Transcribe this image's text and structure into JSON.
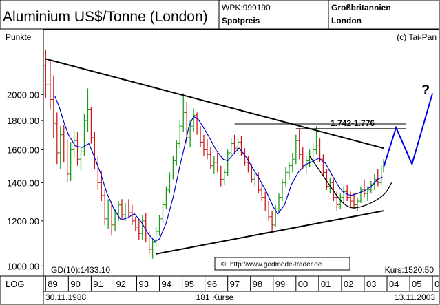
{
  "header": {
    "title": "Aluminium US$/Tonne (London)",
    "wpk": "WPK:999190",
    "price_type": "Spotpreis",
    "country": "Großbritannien",
    "city": "London"
  },
  "copyright": "(c) Tai-Pan",
  "footer": {
    "scale_mode": "LOG",
    "start_date": "30.11.1988",
    "count": "181 Kurse",
    "end_date": "13.11.2003"
  },
  "chart_data": {
    "type": "ohlc",
    "ylabel": "Punkte",
    "y_scale": "log",
    "ylim": [
      960,
      2600
    ],
    "y_ticks": [
      "2000.00",
      "1800.00",
      "1600.00",
      "1400.00",
      "1200.00",
      "1000.00"
    ],
    "x_range": [
      1988.9,
      2006.3
    ],
    "x_ticks": [
      "89",
      "90",
      "91",
      "92",
      "93",
      "94",
      "95",
      "96",
      "97",
      "98",
      "99",
      "00",
      "01",
      "02",
      "03",
      "04",
      "05",
      "06"
    ],
    "gd_label": "GD(10):1433.10",
    "kurs_label": "Kurs:1520.50",
    "source_label": "http://www.godmode-trader.de",
    "target_label": "1.742-1.776",
    "question_mark": "?",
    "colors": {
      "up_bar": "#1a9e1a",
      "down_bar": "#cc1a1a",
      "moving_average": "#0000cc",
      "trendline": "#000000",
      "projection": "#0000ee",
      "target_text": "#0000cc"
    },
    "series": [
      {
        "name": "GD(10)",
        "points": [
          [
            1989.4,
            1990
          ],
          [
            1989.6,
            1900
          ],
          [
            1989.8,
            1790
          ],
          [
            1990.0,
            1700
          ],
          [
            1990.3,
            1625
          ],
          [
            1990.6,
            1615
          ],
          [
            1990.9,
            1640
          ],
          [
            1991.1,
            1570
          ],
          [
            1991.4,
            1460
          ],
          [
            1991.7,
            1340
          ],
          [
            1992.0,
            1260
          ],
          [
            1992.3,
            1205
          ],
          [
            1992.6,
            1215
          ],
          [
            1992.9,
            1235
          ],
          [
            1993.2,
            1195
          ],
          [
            1993.5,
            1140
          ],
          [
            1993.8,
            1105
          ],
          [
            1994.0,
            1115
          ],
          [
            1994.3,
            1190
          ],
          [
            1994.6,
            1320
          ],
          [
            1994.9,
            1500
          ],
          [
            1995.1,
            1620
          ],
          [
            1995.3,
            1760
          ],
          [
            1995.5,
            1830
          ],
          [
            1995.7,
            1810
          ],
          [
            1995.9,
            1760
          ],
          [
            1996.2,
            1680
          ],
          [
            1996.5,
            1595
          ],
          [
            1996.8,
            1540
          ],
          [
            1997.0,
            1530
          ],
          [
            1997.3,
            1580
          ],
          [
            1997.5,
            1610
          ],
          [
            1997.8,
            1555
          ],
          [
            1998.1,
            1485
          ],
          [
            1998.4,
            1420
          ],
          [
            1998.7,
            1350
          ],
          [
            1999.0,
            1270
          ],
          [
            1999.2,
            1235
          ],
          [
            1999.5,
            1280
          ],
          [
            1999.8,
            1390
          ],
          [
            2000.1,
            1460
          ],
          [
            2000.4,
            1505
          ],
          [
            2000.8,
            1530
          ],
          [
            2001.0,
            1545
          ],
          [
            2001.3,
            1515
          ],
          [
            2001.6,
            1440
          ],
          [
            2001.9,
            1375
          ],
          [
            2002.1,
            1345
          ],
          [
            2002.4,
            1330
          ],
          [
            2002.7,
            1340
          ],
          [
            2003.0,
            1355
          ],
          [
            2003.3,
            1380
          ],
          [
            2003.6,
            1420
          ],
          [
            2003.8,
            1433
          ]
        ]
      },
      {
        "name": "Kurs",
        "ohlc": [
          [
            1989.0,
            2250,
            2400,
            1970,
            2080
          ],
          [
            1989.2,
            2080,
            2290,
            1880,
            1960
          ],
          [
            1989.35,
            1960,
            2160,
            1680,
            1780
          ],
          [
            1989.5,
            1780,
            1860,
            1510,
            1580
          ],
          [
            1989.65,
            1580,
            1760,
            1480,
            1700
          ],
          [
            1989.8,
            1700,
            1770,
            1520,
            1560
          ],
          [
            1989.95,
            1560,
            1670,
            1400,
            1450
          ],
          [
            1990.1,
            1450,
            1650,
            1410,
            1600
          ],
          [
            1990.25,
            1600,
            1730,
            1550,
            1660
          ],
          [
            1990.4,
            1660,
            1720,
            1500,
            1540
          ],
          [
            1990.55,
            1540,
            1620,
            1470,
            1590
          ],
          [
            1990.7,
            1590,
            1850,
            1560,
            1800
          ],
          [
            1990.85,
            1800,
            2050,
            1720,
            1880
          ],
          [
            1991.0,
            1880,
            1900,
            1640,
            1680
          ],
          [
            1991.15,
            1680,
            1720,
            1480,
            1520
          ],
          [
            1991.3,
            1520,
            1560,
            1360,
            1400
          ],
          [
            1991.45,
            1400,
            1470,
            1300,
            1330
          ],
          [
            1991.6,
            1330,
            1360,
            1180,
            1210
          ],
          [
            1991.75,
            1210,
            1310,
            1160,
            1270
          ],
          [
            1991.9,
            1270,
            1300,
            1130,
            1180
          ],
          [
            1992.05,
            1180,
            1260,
            1150,
            1240
          ],
          [
            1992.2,
            1240,
            1300,
            1200,
            1280
          ],
          [
            1992.35,
            1280,
            1310,
            1210,
            1230
          ],
          [
            1992.5,
            1230,
            1290,
            1200,
            1270
          ],
          [
            1992.65,
            1270,
            1310,
            1220,
            1240
          ],
          [
            1992.8,
            1240,
            1280,
            1180,
            1200
          ],
          [
            1992.95,
            1200,
            1220,
            1150,
            1170
          ],
          [
            1993.1,
            1170,
            1210,
            1110,
            1140
          ],
          [
            1993.25,
            1140,
            1230,
            1110,
            1200
          ],
          [
            1993.4,
            1200,
            1240,
            1100,
            1120
          ],
          [
            1993.55,
            1120,
            1150,
            1050,
            1070
          ],
          [
            1993.7,
            1070,
            1120,
            1030,
            1100
          ],
          [
            1993.85,
            1100,
            1170,
            1080,
            1150
          ],
          [
            1994.0,
            1150,
            1230,
            1130,
            1210
          ],
          [
            1994.15,
            1210,
            1300,
            1190,
            1280
          ],
          [
            1994.3,
            1280,
            1380,
            1260,
            1360
          ],
          [
            1994.45,
            1360,
            1460,
            1340,
            1440
          ],
          [
            1994.6,
            1440,
            1560,
            1420,
            1530
          ],
          [
            1994.75,
            1530,
            1660,
            1500,
            1640
          ],
          [
            1994.9,
            1640,
            1800,
            1610,
            1760
          ],
          [
            1995.05,
            1760,
            2010,
            1720,
            1860
          ],
          [
            1995.2,
            1860,
            1940,
            1640,
            1680
          ],
          [
            1995.35,
            1680,
            1800,
            1620,
            1760
          ],
          [
            1995.5,
            1760,
            1890,
            1720,
            1840
          ],
          [
            1995.65,
            1840,
            1860,
            1700,
            1720
          ],
          [
            1995.8,
            1720,
            1760,
            1620,
            1650
          ],
          [
            1995.95,
            1650,
            1700,
            1560,
            1600
          ],
          [
            1996.1,
            1600,
            1670,
            1540,
            1570
          ],
          [
            1996.25,
            1570,
            1620,
            1480,
            1500
          ],
          [
            1996.4,
            1500,
            1560,
            1450,
            1520
          ],
          [
            1996.55,
            1520,
            1580,
            1460,
            1480
          ],
          [
            1996.7,
            1480,
            1500,
            1380,
            1420
          ],
          [
            1996.85,
            1420,
            1480,
            1390,
            1460
          ],
          [
            1997.0,
            1460,
            1600,
            1440,
            1580
          ],
          [
            1997.15,
            1580,
            1680,
            1550,
            1640
          ],
          [
            1997.3,
            1640,
            1700,
            1580,
            1610
          ],
          [
            1997.45,
            1610,
            1680,
            1570,
            1650
          ],
          [
            1997.6,
            1650,
            1690,
            1560,
            1580
          ],
          [
            1997.75,
            1580,
            1610,
            1500,
            1520
          ],
          [
            1997.9,
            1520,
            1560,
            1460,
            1480
          ],
          [
            1998.05,
            1480,
            1510,
            1400,
            1420
          ],
          [
            1998.2,
            1420,
            1470,
            1380,
            1440
          ],
          [
            1998.35,
            1440,
            1460,
            1340,
            1360
          ],
          [
            1998.5,
            1360,
            1400,
            1300,
            1320
          ],
          [
            1998.65,
            1320,
            1350,
            1250,
            1270
          ],
          [
            1998.8,
            1270,
            1300,
            1200,
            1220
          ],
          [
            1998.95,
            1220,
            1250,
            1150,
            1180
          ],
          [
            1999.1,
            1180,
            1280,
            1170,
            1260
          ],
          [
            1999.25,
            1260,
            1340,
            1240,
            1320
          ],
          [
            1999.4,
            1320,
            1420,
            1300,
            1400
          ],
          [
            1999.55,
            1400,
            1490,
            1380,
            1460
          ],
          [
            1999.7,
            1460,
            1520,
            1420,
            1500
          ],
          [
            1999.85,
            1500,
            1580,
            1460,
            1540
          ],
          [
            2000.0,
            1540,
            1700,
            1510,
            1660
          ],
          [
            2000.15,
            1660,
            1740,
            1540,
            1570
          ],
          [
            2000.3,
            1570,
            1620,
            1480,
            1500
          ],
          [
            2000.45,
            1500,
            1560,
            1450,
            1530
          ],
          [
            2000.6,
            1530,
            1600,
            1490,
            1560
          ],
          [
            2000.75,
            1560,
            1640,
            1520,
            1600
          ],
          [
            2000.9,
            1600,
            1760,
            1570,
            1630
          ],
          [
            2001.05,
            1630,
            1680,
            1520,
            1540
          ],
          [
            2001.2,
            1540,
            1570,
            1440,
            1460
          ],
          [
            2001.35,
            1460,
            1480,
            1360,
            1380
          ],
          [
            2001.5,
            1380,
            1430,
            1340,
            1400
          ],
          [
            2001.65,
            1400,
            1420,
            1300,
            1320
          ],
          [
            2001.8,
            1320,
            1350,
            1250,
            1280
          ],
          [
            2001.95,
            1280,
            1340,
            1260,
            1320
          ],
          [
            2002.1,
            1320,
            1380,
            1290,
            1350
          ],
          [
            2002.25,
            1350,
            1390,
            1300,
            1320
          ],
          [
            2002.4,
            1320,
            1350,
            1270,
            1300
          ],
          [
            2002.55,
            1300,
            1340,
            1260,
            1280
          ],
          [
            2002.7,
            1280,
            1320,
            1250,
            1300
          ],
          [
            2002.85,
            1300,
            1380,
            1290,
            1360
          ],
          [
            2003.0,
            1360,
            1420,
            1320,
            1340
          ],
          [
            2003.15,
            1340,
            1380,
            1300,
            1360
          ],
          [
            2003.3,
            1360,
            1410,
            1340,
            1390
          ],
          [
            2003.45,
            1390,
            1450,
            1360,
            1420
          ],
          [
            2003.6,
            1420,
            1480,
            1380,
            1400
          ],
          [
            2003.75,
            1400,
            1500,
            1390,
            1480
          ],
          [
            2003.85,
            1480,
            1540,
            1460,
            1520
          ]
        ]
      }
    ],
    "annotations": {
      "upper_trendline": [
        [
          1989.0,
          2310
        ],
        [
          2003.85,
          1610
        ]
      ],
      "lower_trendline": [
        [
          1993.85,
          1050
        ],
        [
          2003.85,
          1250
        ]
      ],
      "resistance_lines": [
        [
          [
            1997.3,
            1776
          ],
          [
            2004.85,
            1776
          ]
        ],
        [
          [
            2000.0,
            1742
          ],
          [
            2004.85,
            1742
          ]
        ]
      ],
      "rounding_bottom": [
        [
          2000.6,
          1560
        ],
        [
          2001.4,
          1400
        ],
        [
          2002.2,
          1260
        ],
        [
          2003.0,
          1270
        ],
        [
          2003.9,
          1330
        ],
        [
          2004.2,
          1400
        ]
      ],
      "projection_path": [
        [
          2003.85,
          1490
        ],
        [
          2004.4,
          1750
        ],
        [
          2005.1,
          1510
        ],
        [
          2006.0,
          2010
        ]
      ]
    }
  }
}
